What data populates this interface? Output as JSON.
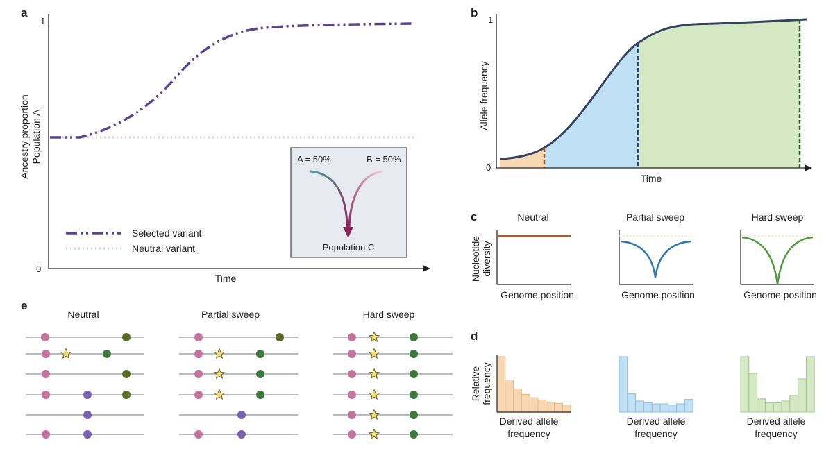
{
  "panels": {
    "a": {
      "label": "a",
      "y_label_line1": "Ancestry proportion",
      "y_label_line2": "Population A",
      "x_label": "Time",
      "y_tick_top": "1",
      "y_tick_bottom": "0",
      "legend": {
        "selected": "Selected variant",
        "neutral": "Neutral variant"
      },
      "inset": {
        "a_label": "A = 50%",
        "b_label": "B = 50%",
        "result": "Population C"
      }
    },
    "b": {
      "label": "b",
      "y_label": "Allele frequency",
      "x_label": "Time",
      "y_tick_top": "1",
      "y_tick_bottom": "0"
    },
    "c": {
      "label": "c",
      "y_label_line1": "Nucleotide",
      "y_label_line2": "diversity",
      "titles": [
        "Neutral",
        "Partial sweep",
        "Hard sweep"
      ],
      "x_label": "Genome position"
    },
    "d": {
      "label": "d",
      "y_label_line1": "Relative",
      "y_label_line2": "frequency",
      "x_label_line1": "Derived allele",
      "x_label_line2": "frequency",
      "neutral_bars": [
        1.0,
        0.58,
        0.42,
        0.32,
        0.26,
        0.22,
        0.18,
        0.16,
        0.13
      ],
      "partial_bars": [
        1.0,
        0.33,
        0.2,
        0.17,
        0.15,
        0.15,
        0.13,
        0.15,
        0.23
      ],
      "hard_bars": [
        1.0,
        0.7,
        0.24,
        0.17,
        0.17,
        0.2,
        0.3,
        0.6,
        1.0
      ]
    },
    "e": {
      "label": "e",
      "titles": [
        "Neutral",
        "Partial sweep",
        "Hard sweep"
      ]
    }
  },
  "colors": {
    "selected": "#5b4390",
    "neutral_dotted": "#efc4d6",
    "curve_b": "#34435e",
    "phase1": "#f8d7b3",
    "phase2": "#bfe0f5",
    "phase3": "#d3e8c3",
    "neutral_c": "#b35a1f",
    "partial_c": "#2e77b2",
    "hard_c": "#4e9a3c",
    "dot_pink": "#c4729e",
    "dot_green": "#3c7a3c",
    "dot_olive": "#5e6b26",
    "dot_purple": "#7a60b2",
    "star": "#f0dc78"
  }
}
